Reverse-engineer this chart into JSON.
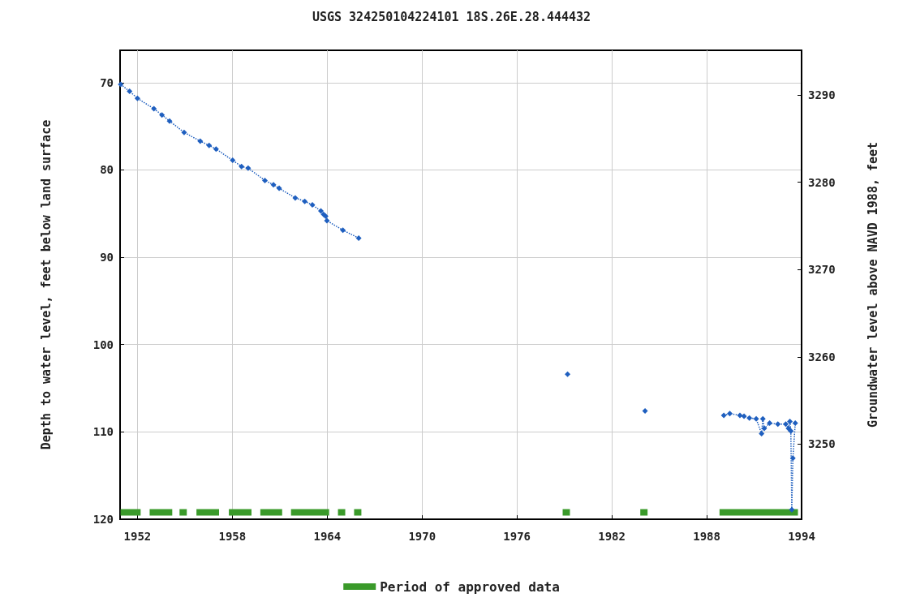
{
  "chart_data": {
    "type": "line",
    "title": "USGS 324250104224101 18S.26E.28.444432",
    "xlabel": null,
    "ylabel": "Depth to water level, feet below land surface",
    "y2label": "Groundwater level above NAVD 1988, feet",
    "xlim": [
      1950.9,
      1994
    ],
    "xticks": [
      1952,
      1958,
      1964,
      1970,
      1976,
      1982,
      1988,
      1994
    ],
    "ylim": [
      120,
      66.3
    ],
    "yticks": [
      70,
      80,
      90,
      100,
      110,
      120
    ],
    "y2lim": [
      3241.4,
      3295.1
    ],
    "y2ticks": [
      3250,
      3260,
      3270,
      3280,
      3290
    ],
    "grid": true,
    "legend": "bottom",
    "series": [
      {
        "color": "#1f5fbf",
        "marker": "diamond",
        "line_style": "dotted",
        "x": [
          1950.94,
          1951.5,
          1952.0,
          1953.04,
          1953.55,
          1954.03,
          1954.95,
          1955.97,
          1956.53,
          1956.97,
          1958.02,
          1958.58,
          1959.0,
          1960.06,
          1960.6,
          1960.96,
          1961.98,
          1962.58,
          1963.06,
          1963.6,
          1963.77,
          1963.9,
          1963.98,
          1964.99,
          1965.99,
          1972,
          1979.2,
          1981.5,
          1984.1,
          1986.5,
          1989.08,
          1989.46,
          1990.1,
          1990.36,
          1990.7,
          1991.13,
          1991.47,
          1991.55,
          1991.64,
          1991.98,
          1992.5,
          1993.0,
          1993.17,
          1993.26,
          1993.32,
          1993.38,
          1993.45,
          1993.6
        ],
        "values": [
          70.2,
          71.0,
          71.8,
          73.0,
          73.7,
          74.4,
          75.7,
          76.7,
          77.2,
          77.6,
          78.9,
          79.6,
          79.8,
          81.2,
          81.7,
          82.1,
          83.2,
          83.6,
          84.0,
          84.7,
          85.1,
          85.3,
          85.8,
          86.9,
          87.8,
          null,
          103.4,
          null,
          107.6,
          null,
          108.1,
          107.9,
          108.1,
          108.2,
          108.4,
          108.5,
          110.2,
          108.5,
          109.6,
          109.0,
          109.1,
          109.1,
          109.6,
          108.8,
          109.9,
          118.9,
          113.0,
          109.0
        ]
      },
      {
        "name": "Period of approved data",
        "color": "#3a9a2a",
        "marker": "none",
        "line_style": "solid",
        "x": [
          1950.93,
          1952.2,
          1952.5,
          1952.77,
          1954.2,
          1954.4,
          1954.66,
          1955.12,
          1955.4,
          1955.73,
          1957.16,
          1957.5,
          1957.78,
          1959.21,
          1959.5,
          1959.77,
          1961.15,
          1961.4,
          1961.71,
          1964.12,
          1964.4,
          1964.68,
          1965.14,
          1965.4,
          1965.7,
          1966.16,
          1972,
          1978.89,
          1979.35,
          1981.5,
          1983.8,
          1984.26,
          1986.5,
          1988.81,
          1993.77
        ],
        "values": [
          119.2,
          119.2,
          null,
          119.2,
          119.2,
          null,
          119.2,
          119.2,
          null,
          119.2,
          119.2,
          null,
          119.2,
          119.2,
          null,
          119.2,
          119.2,
          null,
          119.2,
          119.2,
          null,
          119.2,
          119.2,
          null,
          119.2,
          119.2,
          null,
          119.2,
          119.2,
          null,
          119.2,
          119.2,
          null,
          119.2,
          119.2
        ]
      }
    ]
  }
}
